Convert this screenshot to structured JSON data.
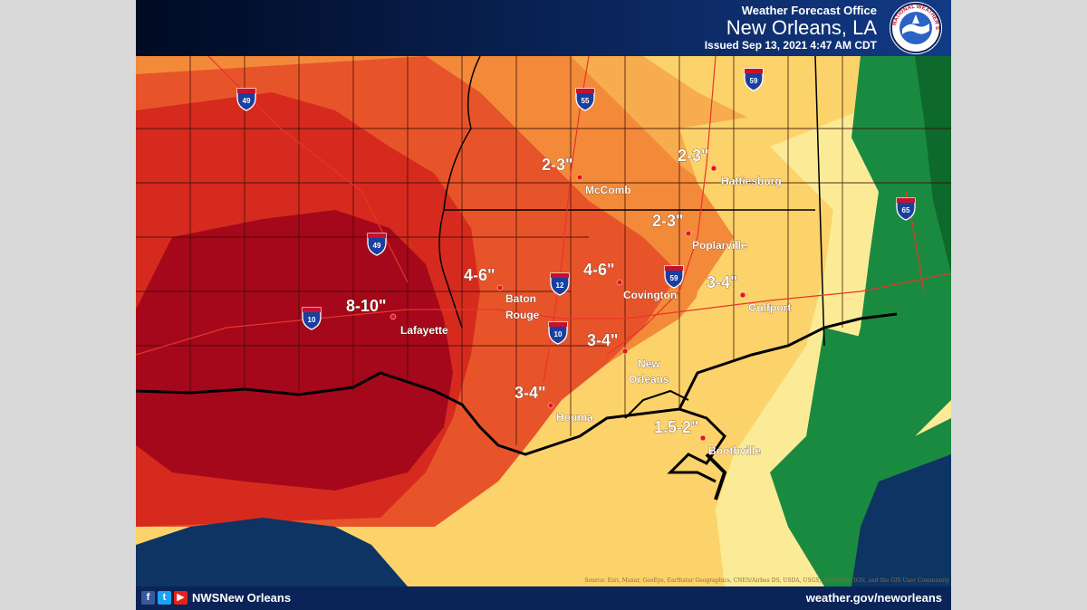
{
  "header": {
    "office": "Weather Forecast Office",
    "city": "New Orleans, LA",
    "issued": "Issued Sep 13, 2021 4:47 AM CDT",
    "logo_text": "NATIONAL WEATHER SERVICE"
  },
  "rain_labels": [
    {
      "amount": "8-10\"",
      "city": "Lafayette"
    },
    {
      "amount": "4-6\"",
      "city": "Baton",
      "city_line2": "Rouge"
    },
    {
      "amount": "4-6\"",
      "city": "Covington"
    },
    {
      "amount": "2-3\"",
      "city": "McComb"
    },
    {
      "amount": "2-3\"",
      "city": "Hattiesburg"
    },
    {
      "amount": "2-3\"",
      "city": "Poplarville"
    },
    {
      "amount": "3-4\"",
      "city": "Gulfport"
    },
    {
      "amount": "3-4\"",
      "city": "New",
      "city_line2": "Orleans"
    },
    {
      "amount": "3-4\"",
      "city": "Houma"
    },
    {
      "amount": "1.5-2\"",
      "city": "Boothville"
    }
  ],
  "highways": [
    "49",
    "55",
    "59",
    "12",
    "10",
    "59",
    "65",
    "49",
    "10"
  ],
  "footer": {
    "social_icons": [
      "facebook-icon",
      "twitter-icon",
      "youtube-icon"
    ],
    "handle": "NWSNew Orleans",
    "website": "weather.gov/neworleans"
  },
  "credit": "Source: Esri, Maxar, GeoEye, Earthstar Geographics, CNES/Airbus DS, USDA, USGS, AeroGRID, IGN, and the GIS User Community",
  "colors": {
    "darkred": "#a5081a",
    "red": "#d62a1f",
    "redorange": "#e8542a",
    "orange": "#f28a3a",
    "lightorange": "#f7ac4d",
    "yellow": "#fcd36a",
    "paleyellow": "#fbeb96",
    "green": "#1a8a40",
    "darkgreen": "#0d6a2c",
    "gulf": "#0e3463"
  }
}
